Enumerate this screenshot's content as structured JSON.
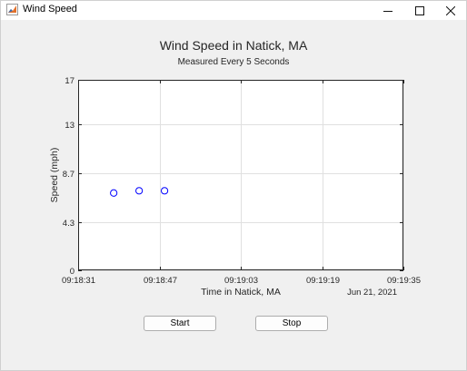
{
  "window": {
    "title": "Wind Speed",
    "controls": {
      "minimize_icon": "minimize-icon",
      "maximize_icon": "maximize-icon",
      "close_icon": "close-icon"
    }
  },
  "figure": {
    "title": "Wind Speed in Natick, MA",
    "subtitle": "Measured Every 5 Seconds"
  },
  "chart_data": {
    "type": "scatter",
    "title": "Wind Speed in Natick, MA",
    "subtitle": "Measured Every 5 Seconds",
    "xlabel": "Time in Natick, MA",
    "ylabel": "Speed (mph)",
    "x_date_label": "Jun 21, 2021",
    "x_ticks": [
      "09:18:31",
      "09:18:47",
      "09:19:03",
      "09:19:19",
      "09:19:35"
    ],
    "y_ticks": [
      "0",
      "4.3",
      "8.7",
      "13",
      "17"
    ],
    "xlim": [
      "09:18:31",
      "09:19:35"
    ],
    "ylim": [
      0,
      17
    ],
    "grid": true,
    "marker": "circle-open",
    "marker_color": "#0000ff",
    "series": [
      {
        "x": [
          "09:18:38",
          "09:18:43",
          "09:18:48"
        ],
        "y": [
          6.9,
          7.1,
          7.1
        ]
      }
    ]
  },
  "buttons": {
    "start_label": "Start",
    "stop_label": "Stop"
  }
}
